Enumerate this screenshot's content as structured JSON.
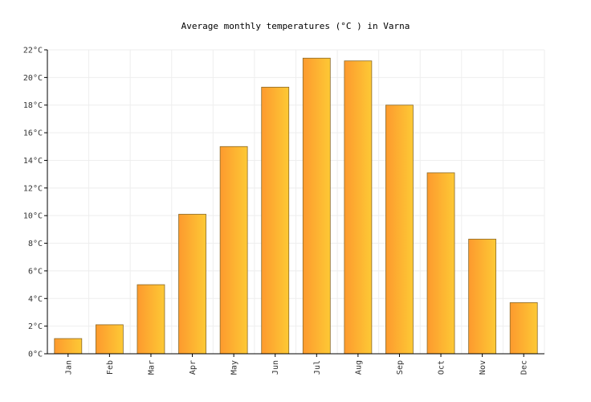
{
  "chart_data": {
    "type": "bar",
    "title": "Average monthly temperatures (°C ) in Varna",
    "xlabel": "",
    "ylabel": "",
    "categories": [
      "Jan",
      "Feb",
      "Mar",
      "Apr",
      "May",
      "Jun",
      "Jul",
      "Aug",
      "Sep",
      "Oct",
      "Nov",
      "Dec"
    ],
    "values": [
      1.1,
      2.1,
      5.0,
      10.1,
      15.0,
      19.3,
      21.4,
      21.2,
      18.0,
      13.1,
      8.3,
      3.7
    ],
    "ylim": [
      0,
      22
    ],
    "yticks": [
      "0°C",
      "2°C",
      "4°C",
      "6°C",
      "8°C",
      "10°C",
      "12°C",
      "14°C",
      "16°C",
      "18°C",
      "20°C",
      "22°C"
    ],
    "grid": true,
    "legend": "none",
    "colors": {
      "bar_left": "#fd9a2e",
      "bar_right": "#fdc935",
      "bar_stroke": "#8a6a2a",
      "grid": "#eeeeee",
      "axis": "#000000"
    }
  }
}
